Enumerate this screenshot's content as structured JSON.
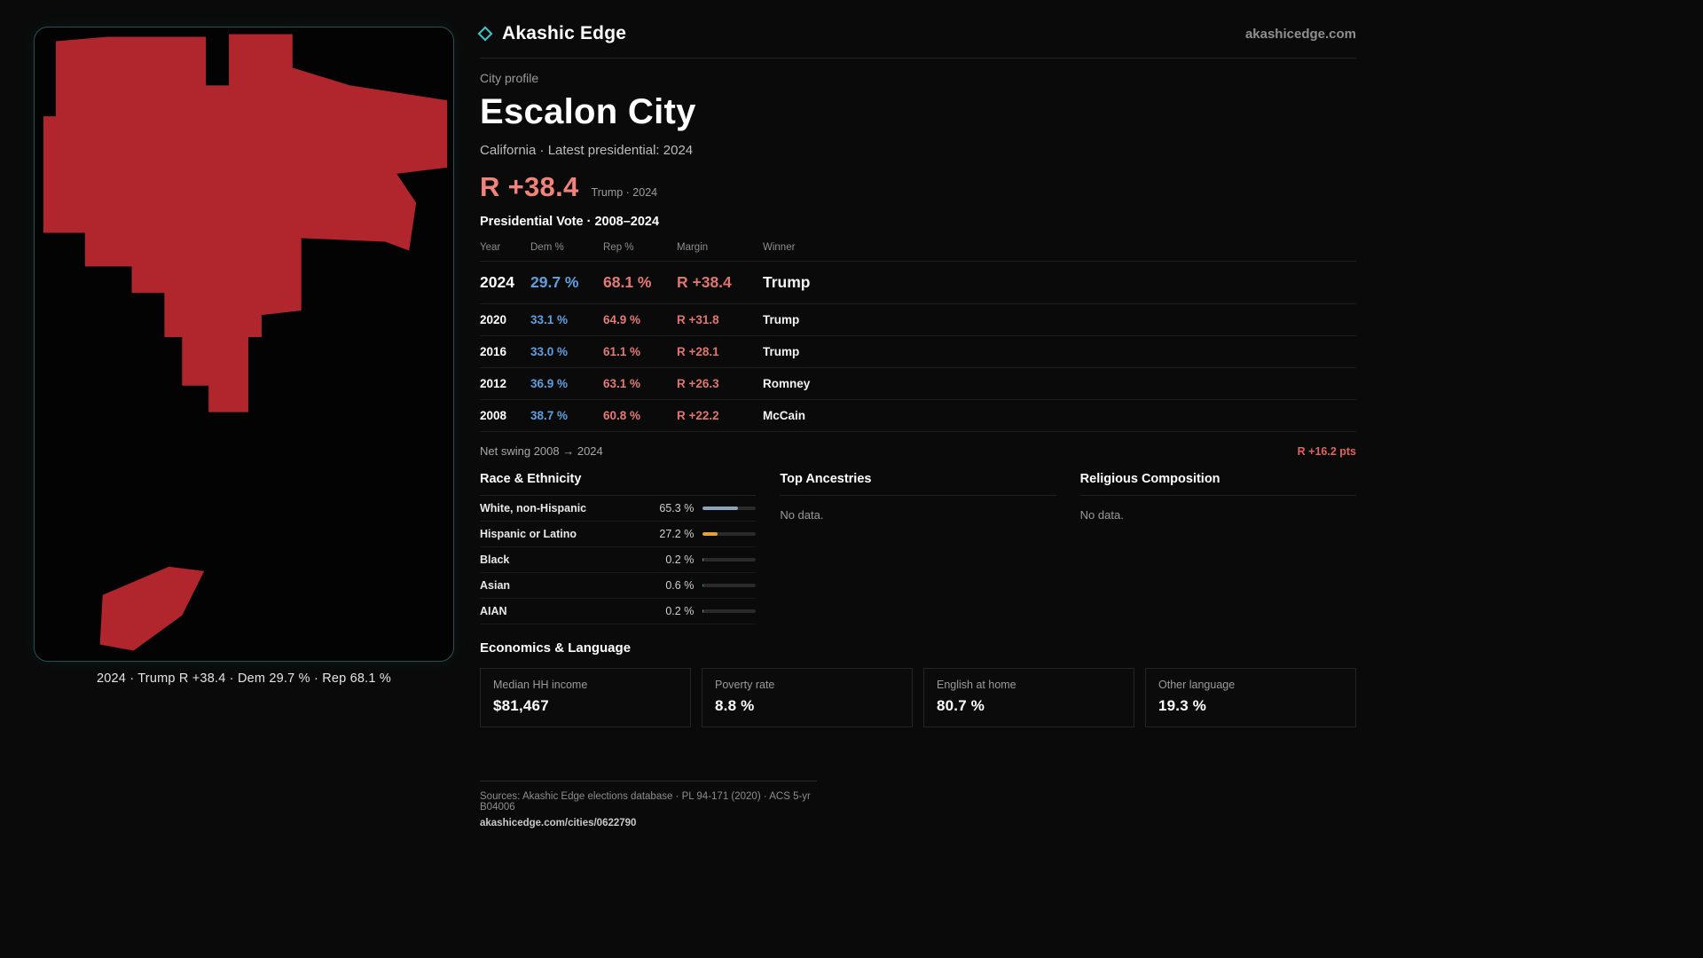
{
  "brand": {
    "name": "Akashic Edge",
    "site": "akashicedge.com",
    "accent": "#3fc6cb"
  },
  "map": {
    "caption": "2024 · Trump  R +38.4 · Dem 29.7 % · Rep 68.1 %",
    "fill_color": "#b0262c"
  },
  "profile": {
    "kicker": "City profile",
    "title": "Escalon City",
    "subtitle": "California · Latest presidential: 2024",
    "headline_margin": "R +38.4",
    "headline_note": "Trump · 2024"
  },
  "vote_table": {
    "title": "Presidential Vote · 2008–2024",
    "columns": [
      "Year",
      "Dem %",
      "Rep %",
      "Margin",
      "Winner"
    ],
    "rows": [
      {
        "year": "2024",
        "dem": "29.7 %",
        "rep": "68.1 %",
        "margin": "R +38.4",
        "winner": "Trump"
      },
      {
        "year": "2020",
        "dem": "33.1 %",
        "rep": "64.9 %",
        "margin": "R +31.8",
        "winner": "Trump"
      },
      {
        "year": "2016",
        "dem": "33.0 %",
        "rep": "61.1 %",
        "margin": "R +28.1",
        "winner": "Trump"
      },
      {
        "year": "2012",
        "dem": "36.9 %",
        "rep": "63.1 %",
        "margin": "R +26.3",
        "winner": "Romney"
      },
      {
        "year": "2008",
        "dem": "38.7 %",
        "rep": "60.8 %",
        "margin": "R +22.2",
        "winner": "McCain"
      }
    ]
  },
  "net_swing": {
    "label": "Net swing 2008 → 2024",
    "value": "R +16.2 pts"
  },
  "race_ethnicity": {
    "title": "Race & Ethnicity",
    "rows": [
      {
        "label": "White, non-Hispanic",
        "value": "65.3 %",
        "pct": 65.3,
        "color": "#8da4bd"
      },
      {
        "label": "Hispanic or Latino",
        "value": "27.2 %",
        "pct": 27.2,
        "color": "#e0a33c"
      },
      {
        "label": "Black",
        "value": "0.2 %",
        "pct": 0.2,
        "color": "#9a9a9a"
      },
      {
        "label": "Asian",
        "value": "0.6 %",
        "pct": 0.6,
        "color": "#2f9e63"
      },
      {
        "label": "AIAN",
        "value": "0.2 %",
        "pct": 0.2,
        "color": "#9a9a9a"
      }
    ]
  },
  "ancestries": {
    "title": "Top Ancestries",
    "empty": "No data."
  },
  "religion": {
    "title": "Religious Composition",
    "empty": "No data."
  },
  "economics": {
    "title": "Economics & Language",
    "stats": [
      {
        "label": "Median HH income",
        "value": "$81,467"
      },
      {
        "label": "Poverty rate",
        "value": "8.8 %"
      },
      {
        "label": "English at home",
        "value": "80.7 %"
      },
      {
        "label": "Other language",
        "value": "19.3 %"
      }
    ]
  },
  "footer": {
    "sources": "Sources: Akashic Edge elections database · PL 94-171 (2020) · ACS 5-yr B04006",
    "permalink": "akashicedge.com/cities/0622790"
  }
}
